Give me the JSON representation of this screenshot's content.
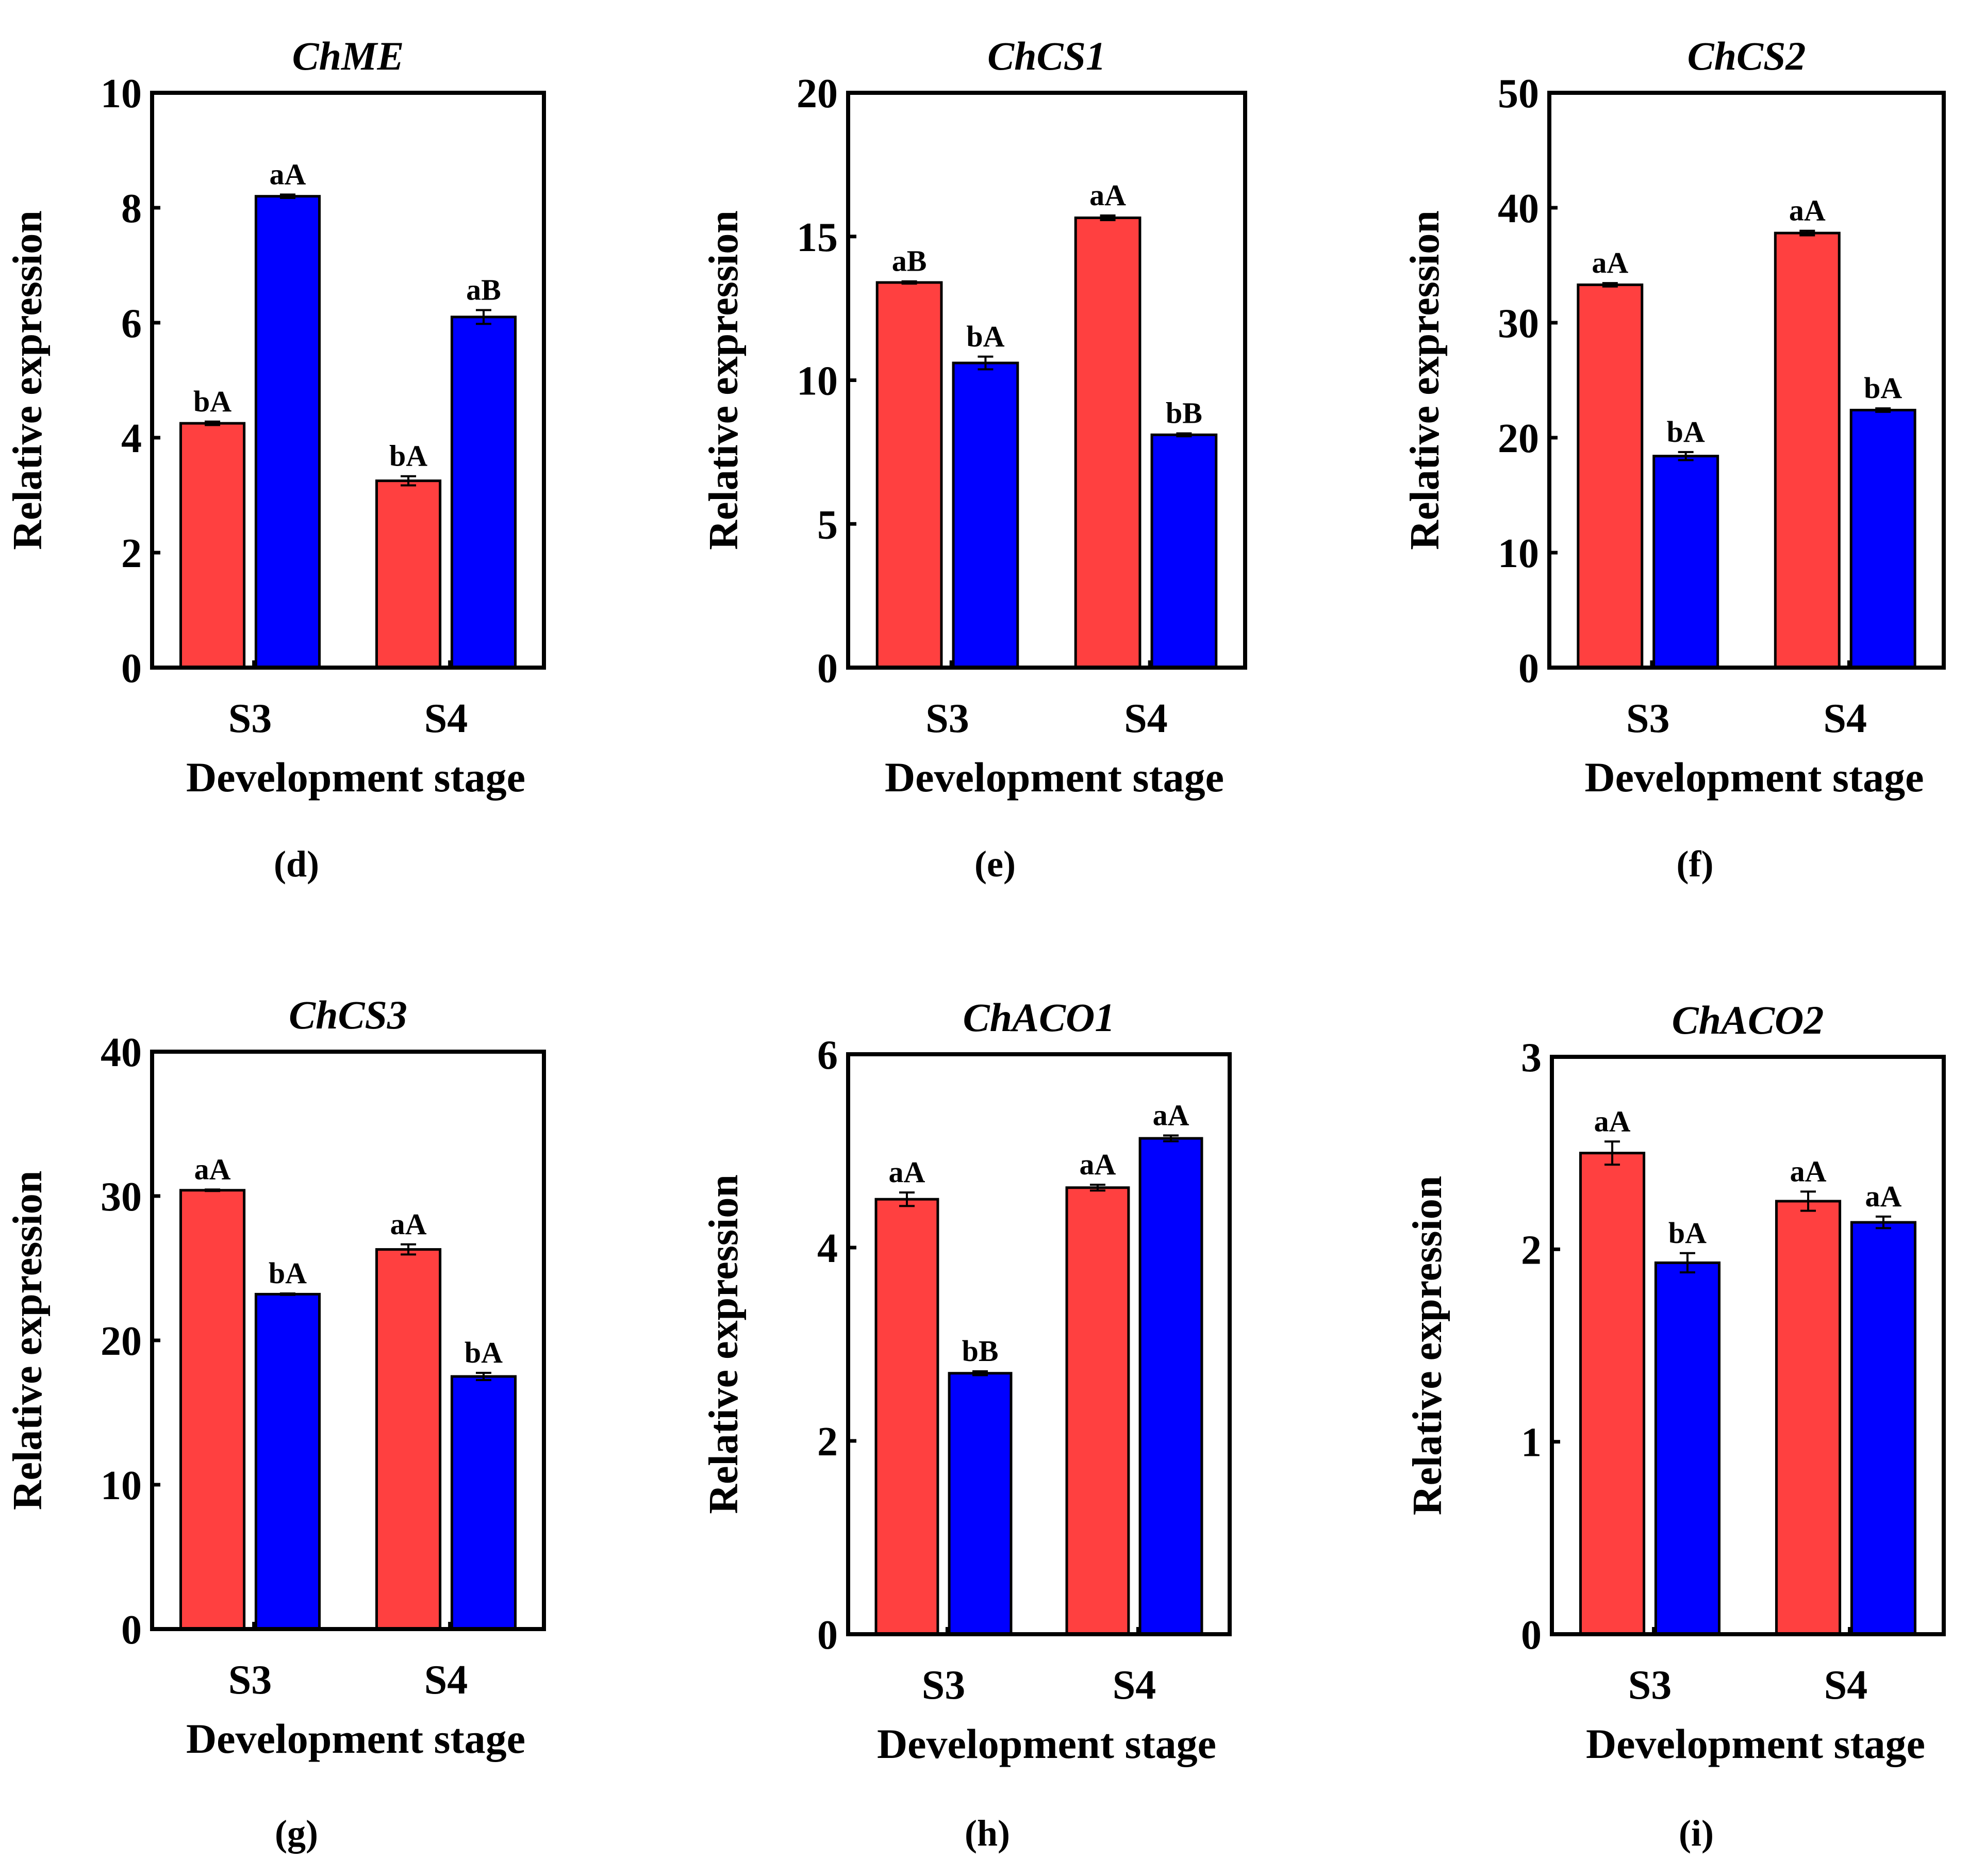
{
  "colors": {
    "red": "#ff4040",
    "blue": "#0000ff",
    "ink": "#000000"
  },
  "chart_data": [
    {
      "type": "bar",
      "title": "ChME",
      "panel_label": "(d)",
      "xlabel": "Development stage",
      "ylabel": "Relative expression",
      "categories": [
        "S3",
        "S4"
      ],
      "ylim": [
        0,
        10
      ],
      "yticks": [
        "0",
        "2",
        "4",
        "6",
        "8",
        "10"
      ],
      "series": [
        {
          "name": "red",
          "color": "#ff4040",
          "values": [
            4.25,
            3.25
          ],
          "errors": [
            0.03,
            0.08
          ],
          "labels": [
            "bA",
            "bA"
          ]
        },
        {
          "name": "blue",
          "color": "#0000ff",
          "values": [
            8.2,
            6.1
          ],
          "errors": [
            0.03,
            0.12
          ],
          "labels": [
            "aA",
            "aB"
          ]
        }
      ]
    },
    {
      "type": "bar",
      "title": "ChCS1",
      "panel_label": "(e)",
      "xlabel": "Development stage",
      "ylabel": "Relative expression",
      "categories": [
        "S3",
        "S4"
      ],
      "ylim": [
        0,
        20
      ],
      "yticks": [
        "0",
        "5",
        "10",
        "15",
        "20"
      ],
      "series": [
        {
          "name": "red",
          "color": "#ff4040",
          "values": [
            13.4,
            15.65
          ],
          "errors": [
            0.04,
            0.08
          ],
          "labels": [
            "aB",
            "aA"
          ]
        },
        {
          "name": "blue",
          "color": "#0000ff",
          "values": [
            10.6,
            8.1
          ],
          "errors": [
            0.22,
            0.05
          ],
          "labels": [
            "bA",
            "bB"
          ]
        }
      ]
    },
    {
      "type": "bar",
      "title": "ChCS2",
      "panel_label": "(f)",
      "xlabel": "Development stage",
      "ylabel": "Relative expression",
      "categories": [
        "S3",
        "S4"
      ],
      "ylim": [
        0,
        50
      ],
      "yticks": [
        "0",
        "10",
        "20",
        "30",
        "40",
        "50"
      ],
      "series": [
        {
          "name": "red",
          "color": "#ff4040",
          "values": [
            33.3,
            37.8
          ],
          "errors": [
            0.15,
            0.2
          ],
          "labels": [
            "aA",
            "aA"
          ]
        },
        {
          "name": "blue",
          "color": "#0000ff",
          "values": [
            18.4,
            22.4
          ],
          "errors": [
            0.35,
            0.15
          ],
          "labels": [
            "bA",
            "bA"
          ]
        }
      ]
    },
    {
      "type": "bar",
      "title": "ChCS3",
      "panel_label": "(g)",
      "xlabel": "Development stage",
      "ylabel": "Relative expression",
      "categories": [
        "S3",
        "S4"
      ],
      "ylim": [
        0,
        40
      ],
      "yticks": [
        "0",
        "10",
        "20",
        "30",
        "40"
      ],
      "series": [
        {
          "name": "red",
          "color": "#ff4040",
          "values": [
            30.4,
            26.3
          ],
          "errors": [
            0.05,
            0.35
          ],
          "labels": [
            "aA",
            "aA"
          ]
        },
        {
          "name": "blue",
          "color": "#0000ff",
          "values": [
            23.2,
            17.5
          ],
          "errors": [
            0.05,
            0.25
          ],
          "labels": [
            "bA",
            "bA"
          ]
        }
      ]
    },
    {
      "type": "bar",
      "title": "ChACO1",
      "panel_label": "(h)",
      "xlabel": "Development stage",
      "ylabel": "Relative expression",
      "categories": [
        "S3",
        "S4"
      ],
      "ylim": [
        0,
        6
      ],
      "yticks": [
        "0",
        "2",
        "4",
        "6"
      ],
      "series": [
        {
          "name": "red",
          "color": "#ff4040",
          "values": [
            4.5,
            4.62
          ],
          "errors": [
            0.07,
            0.03
          ],
          "labels": [
            "aA",
            "aA"
          ]
        },
        {
          "name": "blue",
          "color": "#0000ff",
          "values": [
            2.7,
            5.13
          ],
          "errors": [
            0.02,
            0.03
          ],
          "labels": [
            "bB",
            "aA"
          ]
        }
      ]
    },
    {
      "type": "bar",
      "title": "ChACO2",
      "panel_label": "(i)",
      "xlabel": "Development stage",
      "ylabel": "Relative expression",
      "categories": [
        "S3",
        "S4"
      ],
      "ylim": [
        0,
        3
      ],
      "yticks": [
        "0",
        "1",
        "2",
        "3"
      ],
      "series": [
        {
          "name": "red",
          "color": "#ff4040",
          "values": [
            2.5,
            2.25
          ],
          "errors": [
            0.06,
            0.05
          ],
          "labels": [
            "aA",
            "aA"
          ]
        },
        {
          "name": "blue",
          "color": "#0000ff",
          "values": [
            1.93,
            2.14
          ],
          "errors": [
            0.05,
            0.03
          ],
          "labels": [
            "bA",
            "aA"
          ]
        }
      ]
    }
  ]
}
